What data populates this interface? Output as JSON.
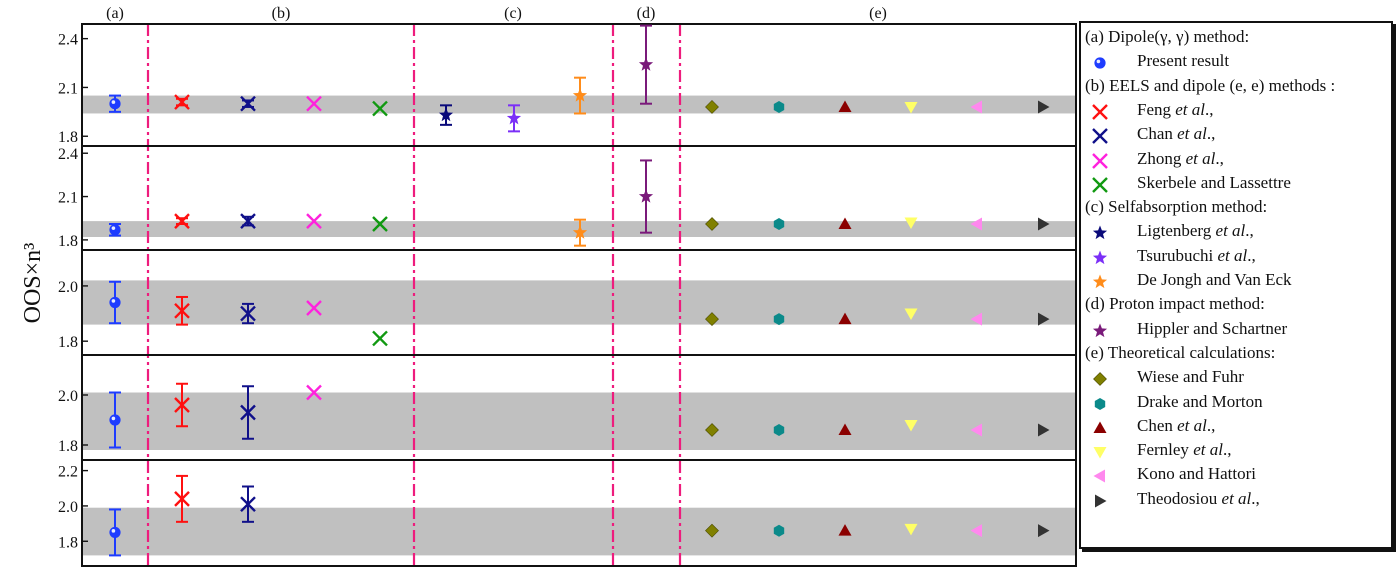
{
  "chart_data": {
    "type": "scatter",
    "ylabel": "OOS×n³",
    "grid": false,
    "section_labels": [
      "(a)",
      "(b)",
      "(c)",
      "(d)",
      "(e)"
    ],
    "panels": [
      {
        "ylim": [
          1.74,
          2.49
        ],
        "yticks": [
          1.8,
          2.1,
          2.4
        ],
        "band": [
          1.94,
          2.05
        ],
        "points": [
          {
            "series": "Present result",
            "y": 2.0,
            "err": 0.05
          },
          {
            "series": "Feng et al.,",
            "y": 2.01,
            "err": 0.02
          },
          {
            "series": "Chan et al.,",
            "y": 2.0,
            "err": 0.02
          },
          {
            "series": "Zhong et al.,",
            "y": 2.0,
            "err": null
          },
          {
            "series": "Skerbele and Lassettre",
            "y": 1.97,
            "err": null
          },
          {
            "series": "Ligtenberg et al.,",
            "y": 1.93,
            "err": 0.06
          },
          {
            "series": "Tsurubuchi et al.,",
            "y": 1.91,
            "err": 0.08
          },
          {
            "series": "De Jongh and Van Eck",
            "y": 2.05,
            "err": 0.11
          },
          {
            "series": "Hippler and Schartner",
            "y": 2.24,
            "err": 0.24
          },
          {
            "series": "Wiese and Fuhr",
            "y": 1.98,
            "err": null
          },
          {
            "series": "Drake and Morton",
            "y": 1.98,
            "err": null
          },
          {
            "series": "Chen et al.,",
            "y": 1.98,
            "err": null
          },
          {
            "series": "Fernley et al.,",
            "y": 1.98,
            "err": null
          },
          {
            "series": "Kono and Hattori",
            "y": 1.98,
            "err": null
          },
          {
            "series": "Theodosiou et al.,",
            "y": 1.98,
            "err": null
          }
        ]
      },
      {
        "ylim": [
          1.73,
          2.45
        ],
        "yticks": [
          1.8,
          2.1,
          2.4
        ],
        "band": [
          1.82,
          1.93
        ],
        "points": [
          {
            "series": "Present result",
            "y": 1.87,
            "err": 0.04
          },
          {
            "series": "Feng et al.,",
            "y": 1.93,
            "err": 0.02
          },
          {
            "series": "Chan et al.,",
            "y": 1.93,
            "err": 0.03
          },
          {
            "series": "Zhong et al.,",
            "y": 1.93,
            "err": null
          },
          {
            "series": "Skerbele and Lassettre",
            "y": 1.91,
            "err": null
          },
          {
            "series": "De Jongh and Van Eck",
            "y": 1.85,
            "err": 0.09
          },
          {
            "series": "Hippler and Schartner",
            "y": 2.1,
            "err": 0.25
          },
          {
            "series": "Wiese and Fuhr",
            "y": 1.91,
            "err": null
          },
          {
            "series": "Drake and Morton",
            "y": 1.91,
            "err": null
          },
          {
            "series": "Chen et al.,",
            "y": 1.91,
            "err": null
          },
          {
            "series": "Fernley et al.,",
            "y": 1.92,
            "err": null
          },
          {
            "series": "Kono and Hattori",
            "y": 1.91,
            "err": null
          },
          {
            "series": "Theodosiou et al.,",
            "y": 1.91,
            "err": null
          }
        ]
      },
      {
        "ylim": [
          1.75,
          2.13
        ],
        "yticks": [
          1.8,
          2.0
        ],
        "band": [
          1.86,
          2.02
        ],
        "points": [
          {
            "series": "Present result",
            "y": 1.94,
            "err": 0.075
          },
          {
            "series": "Feng et al.,",
            "y": 1.91,
            "err": 0.05
          },
          {
            "series": "Chan et al.,",
            "y": 1.9,
            "err": 0.035
          },
          {
            "series": "Zhong et al.,",
            "y": 1.92,
            "err": null
          },
          {
            "series": "Skerbele and Lassettre",
            "y": 1.81,
            "err": null
          },
          {
            "series": "Wiese and Fuhr",
            "y": 1.88,
            "err": null
          },
          {
            "series": "Drake and Morton",
            "y": 1.88,
            "err": null
          },
          {
            "series": "Chen et al.,",
            "y": 1.88,
            "err": null
          },
          {
            "series": "Fernley et al.,",
            "y": 1.9,
            "err": null
          },
          {
            "series": "Kono and Hattori",
            "y": 1.88,
            "err": null
          },
          {
            "series": "Theodosiou et al.,",
            "y": 1.88,
            "err": null
          }
        ]
      },
      {
        "ylim": [
          1.74,
          2.16
        ],
        "yticks": [
          1.8,
          2.0
        ],
        "band": [
          1.78,
          2.01
        ],
        "points": [
          {
            "series": "Present result",
            "y": 1.9,
            "err": 0.11
          },
          {
            "series": "Feng et al.,",
            "y": 1.96,
            "err": 0.085
          },
          {
            "series": "Chan et al.,",
            "y": 1.93,
            "err": 0.105
          },
          {
            "series": "Zhong et al.,",
            "y": 2.01,
            "err": null
          },
          {
            "series": "Wiese and Fuhr",
            "y": 1.86,
            "err": null
          },
          {
            "series": "Drake and Morton",
            "y": 1.86,
            "err": null
          },
          {
            "series": "Chen et al.,",
            "y": 1.86,
            "err": null
          },
          {
            "series": "Fernley et al.,",
            "y": 1.88,
            "err": null
          },
          {
            "series": "Kono and Hattori",
            "y": 1.86,
            "err": null
          },
          {
            "series": "Theodosiou et al.,",
            "y": 1.86,
            "err": null
          }
        ]
      },
      {
        "ylim": [
          1.66,
          2.26
        ],
        "yticks": [
          1.8,
          2.0,
          2.2
        ],
        "band": [
          1.72,
          1.99
        ],
        "points": [
          {
            "series": "Present result",
            "y": 1.85,
            "err": 0.13
          },
          {
            "series": "Feng et al.,",
            "y": 2.04,
            "err": 0.13
          },
          {
            "series": "Chan et al.,",
            "y": 2.01,
            "err": 0.1
          },
          {
            "series": "Wiese and Fuhr",
            "y": 1.86,
            "err": null
          },
          {
            "series": "Drake and Morton",
            "y": 1.86,
            "err": null
          },
          {
            "series": "Chen et al.,",
            "y": 1.86,
            "err": null
          },
          {
            "series": "Fernley et al.,",
            "y": 1.87,
            "err": null
          },
          {
            "series": "Kono and Hattori",
            "y": 1.86,
            "err": null
          },
          {
            "series": "Theodosiou et al.,",
            "y": 1.86,
            "err": null
          }
        ]
      }
    ]
  },
  "legend": {
    "placement": "right",
    "groups": [
      {
        "title": "(a) Dipole(γ, γ) method:",
        "items": [
          {
            "pre": "Present result",
            "em": "",
            "post": "",
            "marker": "ball",
            "color": "#1e3cff"
          }
        ]
      },
      {
        "title": "(b) EELS and dipole (e, e) methods :",
        "items": [
          {
            "pre": "Feng ",
            "em": "et al",
            "post": ".,",
            "marker": "x",
            "color": "#ff1010"
          },
          {
            "pre": "Chan ",
            "em": "et al",
            "post": ".,",
            "marker": "x",
            "color": "#10108a"
          },
          {
            "pre": "Zhong ",
            "em": "et al",
            "post": ".,",
            "marker": "x",
            "color": "#ff22dd"
          },
          {
            "pre": "Skerbele and Lassettre",
            "em": "",
            "post": "",
            "marker": "x",
            "color": "#119911"
          }
        ]
      },
      {
        "title": "(c) Selfabsorption method:",
        "items": [
          {
            "pre": "Ligtenberg ",
            "em": "et al",
            "post": ".,",
            "marker": "star",
            "color": "#0a0a7a"
          },
          {
            "pre": "Tsurubuchi ",
            "em": "et al",
            "post": ".,",
            "marker": "star",
            "color": "#7b2ff7"
          },
          {
            "pre": "De Jongh and Van Eck",
            "em": "",
            "post": "",
            "marker": "star",
            "color": "#ff8c1a"
          }
        ]
      },
      {
        "title": "(d) Proton impact method:",
        "items": [
          {
            "pre": "Hippler and Schartner",
            "em": "",
            "post": "",
            "marker": "star",
            "color": "#7a1a7a"
          }
        ]
      },
      {
        "title": "(e) Theoretical calculations:",
        "items": [
          {
            "pre": "Wiese and Fuhr",
            "em": "",
            "post": "",
            "marker": "diamond",
            "color": "#808000"
          },
          {
            "pre": "Drake and Morton",
            "em": "",
            "post": "",
            "marker": "hexagon",
            "color": "#0b8a8a"
          },
          {
            "pre": "Chen ",
            "em": "et al",
            "post": ".,",
            "marker": "triangle-up",
            "color": "#8b0000"
          },
          {
            "pre": "Fernley ",
            "em": "et al",
            "post": ".,",
            "marker": "triangle-down",
            "color": "#ffff66"
          },
          {
            "pre": "Kono and Hattori",
            "em": "",
            "post": "",
            "marker": "triangle-left",
            "color": "#ff88ee"
          },
          {
            "pre": "Theodosiou ",
            "em": "et al",
            "post": ".,",
            "marker": "triangle-right",
            "color": "#333333"
          }
        ]
      }
    ]
  }
}
